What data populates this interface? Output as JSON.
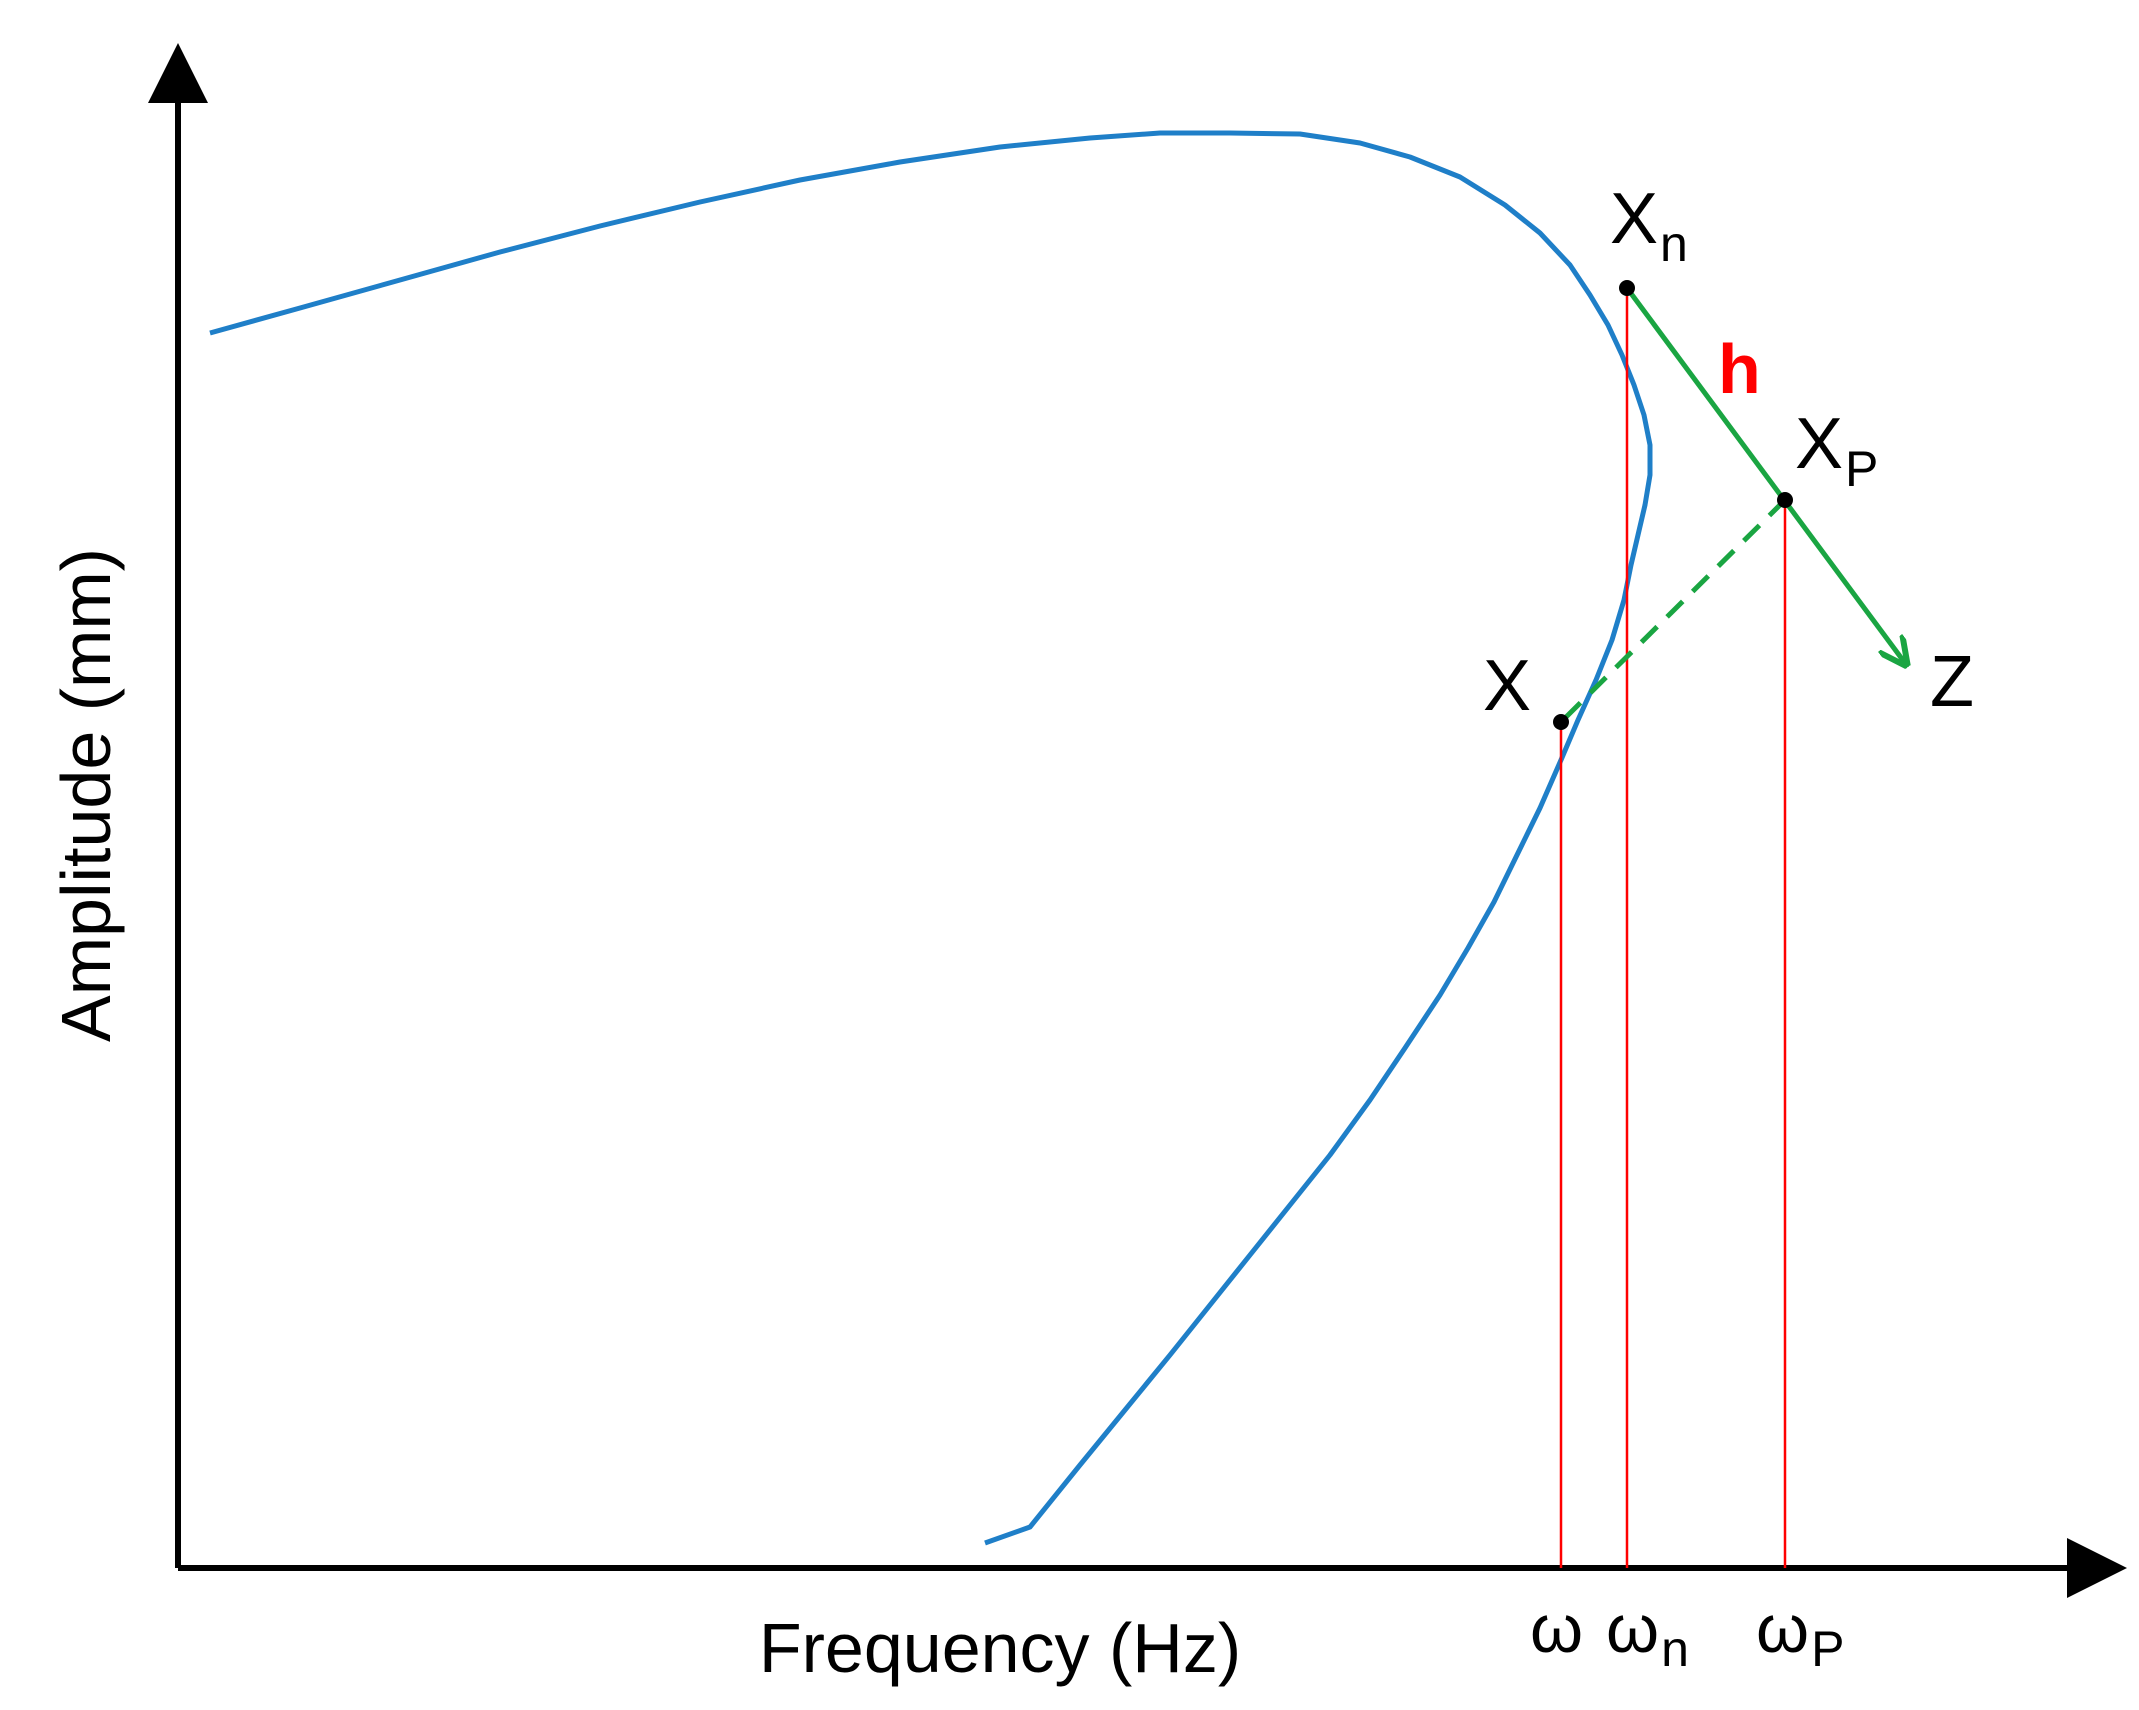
{
  "diagram": {
    "x_axis_title": "Frequency (Hz)",
    "y_axis_title": "Amplitude (mm)",
    "points": {
      "xn": {
        "main": "X",
        "sub": "n"
      },
      "xp": {
        "main": "X",
        "sub": "P"
      },
      "x": {
        "main": "X"
      },
      "z": {
        "main": "Z"
      }
    },
    "step_label": "h",
    "frequency_marks": {
      "omega": {
        "main": "ω"
      },
      "omega_n": {
        "main": "ω",
        "sub": "n"
      },
      "omega_p": {
        "main": "ω",
        "sub": "P"
      }
    },
    "colors": {
      "curve": "#1f7fc8",
      "projection_lines": "#ff0000",
      "tangent": "#1aa542",
      "step_label": "#ff0000",
      "axes": "#000000"
    }
  }
}
